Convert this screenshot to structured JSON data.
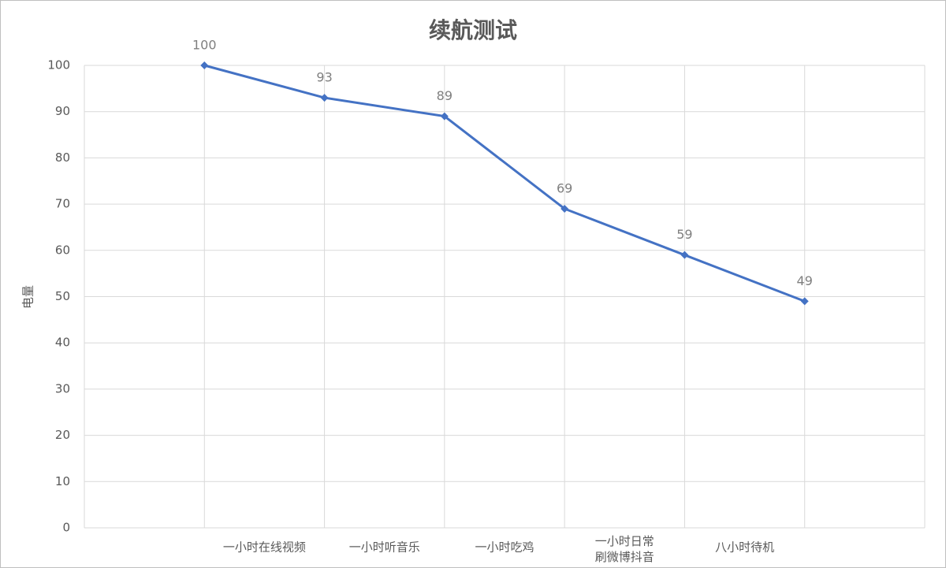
{
  "chart_data": {
    "type": "line",
    "title": "续航测试",
    "y_label": "电量",
    "categories": [
      null,
      "一小时在线视频",
      "一小时听音乐",
      "一小时吃鸡",
      "一小时日常刷微博抖音",
      "八小时待机"
    ],
    "series": [
      {
        "name": "电量",
        "color": "#4472c4",
        "values": [
          100,
          93,
          89,
          69,
          59,
          49
        ]
      }
    ],
    "ylim": [
      0,
      100
    ],
    "yticks": [
      0,
      10,
      20,
      30,
      40,
      50,
      60,
      70,
      80,
      90,
      100
    ],
    "grid": true
  }
}
